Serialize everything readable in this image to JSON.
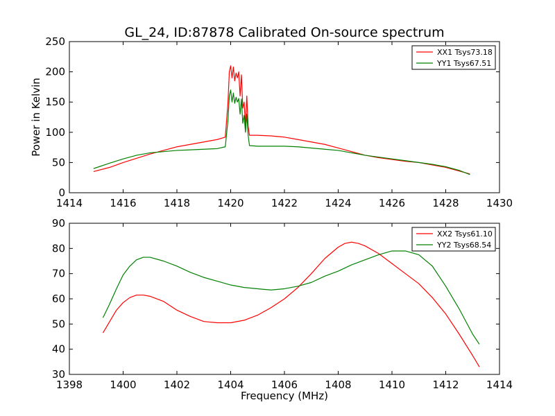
{
  "title": "GL_24, ID:87878 Calibrated On-source spectrum",
  "colors": {
    "xx": "#ff0000",
    "yy": "#008000"
  },
  "chart_data": [
    {
      "type": "line",
      "ylabel": "Power in Kelvin",
      "xlabel": "",
      "xlim": [
        1414,
        1430
      ],
      "ylim": [
        0,
        250
      ],
      "xticks": [
        1414,
        1416,
        1418,
        1420,
        1422,
        1424,
        1426,
        1428,
        1430
      ],
      "yticks": [
        0,
        50,
        100,
        150,
        200,
        250
      ],
      "legend_position": "top-right",
      "series": [
        {
          "name": "XX1 Tsys73.18",
          "color": "#ff0000",
          "x": [
            1414.9,
            1415.5,
            1416.0,
            1416.5,
            1417.0,
            1417.5,
            1418.0,
            1418.5,
            1419.0,
            1419.5,
            1419.8,
            1419.9,
            1419.95,
            1420.0,
            1420.05,
            1420.1,
            1420.15,
            1420.2,
            1420.25,
            1420.3,
            1420.35,
            1420.4,
            1420.45,
            1420.5,
            1420.55,
            1420.6,
            1420.65,
            1420.7,
            1421.0,
            1421.5,
            1422.0,
            1422.5,
            1423.0,
            1423.5,
            1424.0,
            1424.5,
            1425.0,
            1425.5,
            1426.0,
            1426.5,
            1427.0,
            1427.5,
            1428.0,
            1428.5,
            1428.9
          ],
          "values": [
            35,
            42,
            50,
            57,
            64,
            70,
            76,
            80,
            84,
            88,
            92,
            150,
            200,
            210,
            190,
            208,
            185,
            198,
            190,
            200,
            160,
            195,
            140,
            150,
            110,
            160,
            110,
            95,
            95,
            94,
            92,
            88,
            84,
            80,
            74,
            68,
            62,
            58,
            55,
            52,
            50,
            46,
            42,
            36,
            31
          ]
        },
        {
          "name": "YY1 Tsys67.51",
          "color": "#008000",
          "x": [
            1414.9,
            1415.5,
            1416.0,
            1416.5,
            1417.0,
            1417.5,
            1418.0,
            1418.5,
            1419.0,
            1419.5,
            1419.8,
            1419.9,
            1419.95,
            1420.0,
            1420.05,
            1420.1,
            1420.15,
            1420.2,
            1420.25,
            1420.3,
            1420.35,
            1420.4,
            1420.45,
            1420.5,
            1420.55,
            1420.6,
            1420.65,
            1420.7,
            1421.0,
            1421.5,
            1422.0,
            1422.5,
            1423.0,
            1423.5,
            1424.0,
            1424.5,
            1425.0,
            1425.5,
            1426.0,
            1426.5,
            1427.0,
            1427.5,
            1428.0,
            1428.5,
            1428.9
          ],
          "values": [
            40,
            49,
            56,
            62,
            66,
            68,
            70,
            71,
            72,
            73,
            76,
            120,
            160,
            170,
            150,
            165,
            148,
            158,
            150,
            156,
            130,
            155,
            115,
            128,
            100,
            130,
            95,
            78,
            77,
            77,
            77,
            76,
            74,
            72,
            70,
            66,
            62,
            59,
            56,
            53,
            50,
            47,
            43,
            37,
            30
          ]
        }
      ]
    },
    {
      "type": "line",
      "xlabel": "Frequency (MHz)",
      "ylabel": "",
      "xlim": [
        1398,
        1414
      ],
      "ylim": [
        30,
        90
      ],
      "xticks": [
        1398,
        1400,
        1402,
        1404,
        1406,
        1408,
        1410,
        1412,
        1414
      ],
      "yticks": [
        30,
        40,
        50,
        60,
        70,
        80,
        90
      ],
      "legend_position": "top-right",
      "series": [
        {
          "name": "XX2 Tsys61.10",
          "color": "#ff0000",
          "x": [
            1399.25,
            1399.5,
            1399.75,
            1400.0,
            1400.25,
            1400.5,
            1400.75,
            1401.0,
            1401.5,
            1402.0,
            1402.5,
            1403.0,
            1403.5,
            1404.0,
            1404.5,
            1405.0,
            1405.5,
            1406.0,
            1406.5,
            1407.0,
            1407.5,
            1408.0,
            1408.25,
            1408.5,
            1408.75,
            1409.0,
            1409.5,
            1410.0,
            1410.5,
            1411.0,
            1411.5,
            1412.0,
            1412.5,
            1413.0,
            1413.25
          ],
          "values": [
            46.5,
            51,
            55.5,
            58.5,
            60.5,
            61.5,
            61.5,
            61,
            59,
            55.5,
            53,
            51,
            50.5,
            50.5,
            51.5,
            53.5,
            56.5,
            60,
            64.5,
            70,
            76,
            80.5,
            82,
            82.5,
            82,
            81,
            78,
            74,
            70,
            66,
            60.5,
            54,
            46,
            37.5,
            33
          ]
        },
        {
          "name": "YY2 Tsys68.54",
          "color": "#008000",
          "x": [
            1399.25,
            1399.5,
            1399.75,
            1400.0,
            1400.25,
            1400.5,
            1400.75,
            1401.0,
            1401.5,
            1402.0,
            1402.5,
            1403.0,
            1403.5,
            1404.0,
            1404.5,
            1405.0,
            1405.5,
            1406.0,
            1406.5,
            1407.0,
            1407.5,
            1408.0,
            1408.5,
            1409.0,
            1409.5,
            1410.0,
            1410.5,
            1411.0,
            1411.5,
            1412.0,
            1412.5,
            1413.0,
            1413.25
          ],
          "values": [
            52.5,
            58,
            64,
            69.5,
            73,
            75.5,
            76.5,
            76.5,
            75,
            73,
            70.5,
            68.5,
            67,
            65.5,
            64.5,
            64,
            63.5,
            64,
            65,
            66.5,
            69,
            71,
            73.5,
            75.5,
            77.5,
            79,
            79,
            77.5,
            73,
            65,
            56,
            46,
            42
          ]
        }
      ]
    }
  ]
}
